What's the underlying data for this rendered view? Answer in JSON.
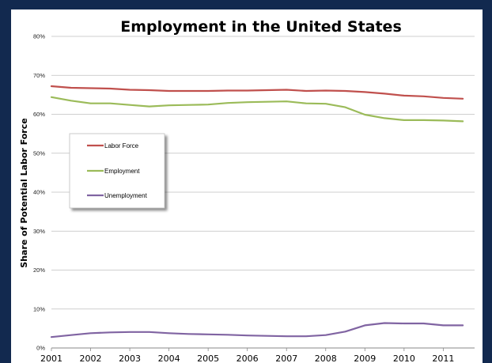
{
  "chart_data": {
    "type": "line",
    "title": "Employment in the United States",
    "xlabel": "",
    "ylabel": "Share of Potential Labor Force",
    "ylim": [
      0,
      80
    ],
    "yticks": [
      "0%",
      "10%",
      "20%",
      "30%",
      "40%",
      "50%",
      "60%",
      "70%",
      "80%"
    ],
    "x": [
      2001,
      2001.5,
      2002,
      2002.5,
      2003,
      2003.5,
      2004,
      2004.5,
      2005,
      2005.5,
      2006,
      2006.5,
      2007,
      2007.5,
      2008,
      2008.5,
      2009,
      2009.5,
      2010,
      2010.5,
      2011,
      2011.5
    ],
    "xticks": [
      "2001",
      "2002",
      "2003",
      "2004",
      "2005",
      "2006",
      "2007",
      "2008",
      "2009",
      "2010",
      "2011"
    ],
    "grid": "horizontal",
    "legend_position": "left",
    "series": [
      {
        "name": "Labor Force",
        "color": "#c0504d",
        "values": [
          67.2,
          66.8,
          66.7,
          66.6,
          66.3,
          66.2,
          66.0,
          66.0,
          66.0,
          66.1,
          66.1,
          66.2,
          66.3,
          66.0,
          66.1,
          66.0,
          65.7,
          65.3,
          64.8,
          64.6,
          64.2,
          64.0
        ]
      },
      {
        "name": "Employment",
        "color": "#9bbb59",
        "values": [
          64.4,
          63.5,
          62.8,
          62.8,
          62.4,
          62.0,
          62.3,
          62.4,
          62.5,
          62.9,
          63.1,
          63.2,
          63.3,
          62.8,
          62.7,
          61.8,
          59.9,
          59.0,
          58.5,
          58.5,
          58.4,
          58.2
        ]
      },
      {
        "name": "Unemployment",
        "color": "#8064a2",
        "values": [
          2.8,
          3.3,
          3.8,
          4.0,
          4.1,
          4.1,
          3.8,
          3.6,
          3.5,
          3.4,
          3.2,
          3.1,
          3.0,
          3.0,
          3.3,
          4.2,
          5.8,
          6.4,
          6.3,
          6.3,
          5.8,
          5.8
        ]
      }
    ]
  }
}
